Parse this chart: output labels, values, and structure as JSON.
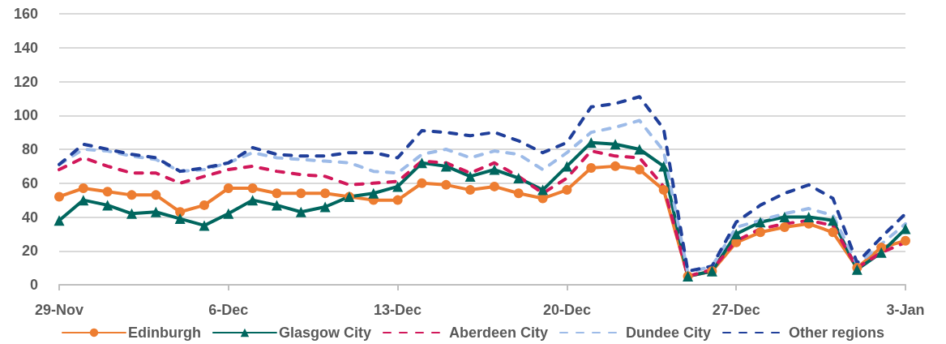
{
  "chart_data": {
    "type": "line",
    "categories": [
      "29-Nov",
      null,
      null,
      null,
      null,
      null,
      null,
      "6-Dec",
      null,
      null,
      null,
      null,
      null,
      null,
      "13-Dec",
      null,
      null,
      null,
      null,
      null,
      null,
      "20-Dec",
      null,
      null,
      null,
      null,
      null,
      null,
      "27-Dec",
      null,
      null,
      null,
      null,
      null,
      null,
      "3-Jan"
    ],
    "ylim": [
      0,
      160
    ],
    "yticks": [
      0,
      20,
      40,
      60,
      80,
      100,
      120,
      140,
      160
    ],
    "grid": "y",
    "legend": "bottom",
    "series": [
      {
        "name": "Edinburgh",
        "color": "#ed7d31",
        "marker": "circle",
        "line_style": "solid",
        "values": [
          52,
          57,
          55,
          53,
          53,
          43,
          47,
          57,
          57,
          54,
          54,
          54,
          52,
          50,
          50,
          60,
          59,
          56,
          58,
          54,
          51,
          56,
          69,
          70,
          68,
          56,
          5,
          8,
          25,
          31,
          34,
          36,
          31,
          10,
          22,
          26
        ]
      },
      {
        "name": "Glasgow City",
        "color": "#00665e",
        "marker": "triangle",
        "line_style": "solid",
        "values": [
          38,
          50,
          47,
          42,
          43,
          39,
          35,
          42,
          50,
          47,
          43,
          46,
          52,
          54,
          58,
          72,
          70,
          64,
          68,
          63,
          56,
          70,
          84,
          83,
          80,
          70,
          5,
          8,
          30,
          37,
          40,
          40,
          38,
          9,
          19,
          33
        ]
      },
      {
        "name": "Aberdeen City",
        "color": "#d1185a",
        "marker": "none",
        "line_style": "dashed",
        "values": [
          68,
          75,
          70,
          66,
          66,
          60,
          64,
          68,
          70,
          67,
          65,
          64,
          59,
          60,
          61,
          73,
          72,
          66,
          72,
          64,
          54,
          63,
          79,
          76,
          75,
          58,
          5,
          9,
          26,
          33,
          36,
          38,
          35,
          10,
          19,
          25
        ]
      },
      {
        "name": "Dundee City",
        "color": "#9dbbe8",
        "marker": "none",
        "line_style": "dashed",
        "values": [
          71,
          80,
          79,
          76,
          74,
          67,
          68,
          72,
          78,
          75,
          74,
          73,
          72,
          67,
          66,
          77,
          80,
          75,
          79,
          77,
          68,
          78,
          90,
          93,
          97,
          79,
          7,
          11,
          34,
          38,
          42,
          45,
          41,
          12,
          24,
          36
        ]
      },
      {
        "name": "Other regions",
        "color": "#203f9a",
        "marker": "none",
        "line_style": "dashed",
        "values": [
          71,
          83,
          80,
          77,
          75,
          67,
          69,
          72,
          81,
          77,
          76,
          76,
          78,
          78,
          75,
          91,
          90,
          88,
          90,
          85,
          78,
          84,
          105,
          107,
          111,
          92,
          8,
          11,
          37,
          47,
          54,
          59,
          51,
          13,
          28,
          42
        ]
      }
    ]
  }
}
